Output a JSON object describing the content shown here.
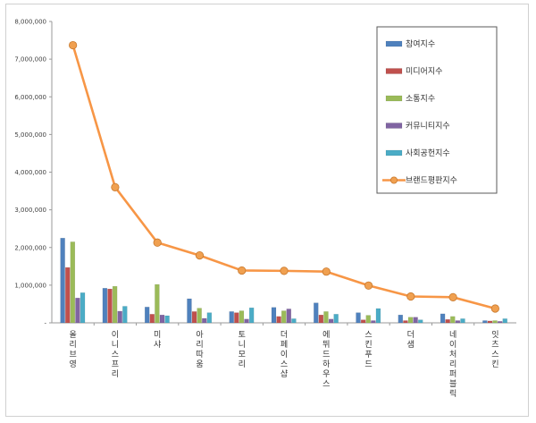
{
  "chart_data": {
    "type": "bar",
    "categories": [
      "올리브영",
      "이니스프리",
      "미샤",
      "아리따움",
      "토니모리",
      "더페이스샵",
      "에뛰드하우스",
      "스킨푸드",
      "더샘",
      "네이처리퍼블릭",
      "잇츠스킨"
    ],
    "series": [
      {
        "name": "참여지수",
        "type": "bar",
        "color": "#4f81bd",
        "values": [
          2250000,
          920000,
          420000,
          640000,
          300000,
          410000,
          530000,
          270000,
          210000,
          240000,
          60000
        ]
      },
      {
        "name": "미디어지수",
        "type": "bar",
        "color": "#c0504d",
        "values": [
          1470000,
          900000,
          230000,
          300000,
          270000,
          170000,
          210000,
          80000,
          60000,
          90000,
          50000
        ]
      },
      {
        "name": "소통지수",
        "type": "bar",
        "color": "#9bbb59",
        "values": [
          2150000,
          970000,
          1020000,
          390000,
          320000,
          320000,
          300000,
          200000,
          150000,
          170000,
          60000
        ]
      },
      {
        "name": "커뮤니티지수",
        "type": "bar",
        "color": "#8064a2",
        "values": [
          660000,
          310000,
          210000,
          120000,
          100000,
          370000,
          100000,
          60000,
          150000,
          60000,
          40000
        ]
      },
      {
        "name": "사회공헌지수",
        "type": "bar",
        "color": "#4bacc6",
        "values": [
          800000,
          440000,
          190000,
          270000,
          400000,
          110000,
          230000,
          380000,
          80000,
          110000,
          110000
        ]
      },
      {
        "name": "브랜드평판지수",
        "type": "line",
        "color": "#f79646",
        "values": [
          7370000,
          3600000,
          2130000,
          1790000,
          1390000,
          1380000,
          1360000,
          990000,
          700000,
          680000,
          380000
        ]
      }
    ],
    "y_ticks": [
      "-",
      "1,000,000",
      "2,000,000",
      "3,000,000",
      "4,000,000",
      "5,000,000",
      "6,000,000",
      "7,000,000",
      "8,000,000"
    ],
    "ylim": [
      0,
      8000000
    ],
    "grid": false,
    "legend_position": "top-right"
  }
}
